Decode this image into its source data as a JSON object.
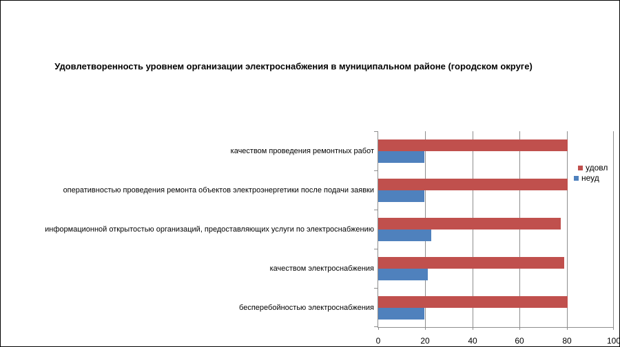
{
  "chart_data": {
    "type": "bar",
    "orientation": "horizontal",
    "title": "Удовлетворенность уровнем организации электроснабжения в муниципальном районе (городском округе)",
    "categories": [
      "качеством проведения ремонтных работ",
      "оперативностью проведения ремонта объектов электроэнергетики после подачи заявки",
      "информационной открытостью организаций, предоставляющих услуги по электроснабжению",
      "качеством электроснабжения",
      "бесперебойностью электроснабжения"
    ],
    "series": [
      {
        "name": "удовл",
        "color": "#C0504D",
        "values": [
          80.5,
          80.5,
          77.5,
          79,
          80.5
        ]
      },
      {
        "name": "неуд",
        "color": "#4F81BD",
        "values": [
          19.5,
          19.5,
          22.5,
          21,
          19.5
        ]
      }
    ],
    "xlim": [
      0,
      100
    ],
    "x_ticks": [
      0,
      20,
      40,
      60,
      80,
      100
    ],
    "grid": "vertical",
    "legend_position": "right",
    "axis_color": "#8C8C8C",
    "text_color": "#000000"
  }
}
